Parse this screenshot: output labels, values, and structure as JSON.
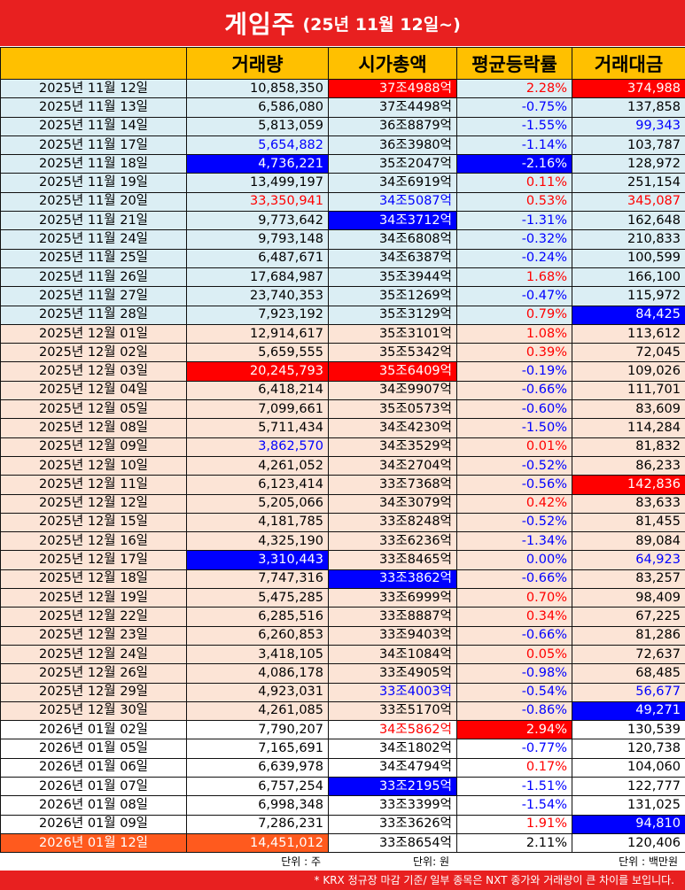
{
  "title": {
    "main": "게임주",
    "sub": "(25년 11월 12일~)"
  },
  "headers": [
    "",
    "거래량",
    "시가총액",
    "평균등락률",
    "거래대금"
  ],
  "rows": [
    {
      "g": "nov",
      "date": "2025년 11월 12일",
      "vol": "10,858,350",
      "cap": "37조4988억",
      "rate": "2.28%",
      "amt": "374,988",
      "vs": "",
      "cs": "bg-red",
      "rs": "c-red",
      "as": "bg-red"
    },
    {
      "g": "nov",
      "date": "2025년 11월 13일",
      "vol": "6,586,080",
      "cap": "37조4498억",
      "rate": "-0.75%",
      "amt": "137,858",
      "vs": "",
      "cs": "",
      "rs": "c-blue",
      "as": ""
    },
    {
      "g": "nov",
      "date": "2025년 11월 14일",
      "vol": "5,813,059",
      "cap": "36조8879억",
      "rate": "-1.55%",
      "amt": "99,343",
      "vs": "",
      "cs": "",
      "rs": "c-blue",
      "as": "c-blue"
    },
    {
      "g": "nov",
      "date": "2025년 11월 17일",
      "vol": "5,654,882",
      "cap": "36조3980억",
      "rate": "-1.14%",
      "amt": "103,787",
      "vs": "c-blue",
      "cs": "",
      "rs": "c-blue",
      "as": ""
    },
    {
      "g": "nov",
      "date": "2025년 11월 18일",
      "vol": "4,736,221",
      "cap": "35조2047억",
      "rate": "-2.16%",
      "amt": "128,972",
      "vs": "bg-blue",
      "cs": "",
      "rs": "bg-blue",
      "as": ""
    },
    {
      "g": "nov",
      "date": "2025년 11월 19일",
      "vol": "13,499,197",
      "cap": "34조6919억",
      "rate": "0.11%",
      "amt": "251,154",
      "vs": "",
      "cs": "",
      "rs": "c-red",
      "as": ""
    },
    {
      "g": "nov",
      "date": "2025년 11월 20일",
      "vol": "33,350,941",
      "cap": "34조5087억",
      "rate": "0.53%",
      "amt": "345,087",
      "vs": "c-red",
      "cs": "c-blue",
      "rs": "c-red",
      "as": "c-red"
    },
    {
      "g": "nov",
      "date": "2025년 11월 21일",
      "vol": "9,773,642",
      "cap": "34조3712억",
      "rate": "-1.31%",
      "amt": "162,648",
      "vs": "",
      "cs": "bg-blue",
      "rs": "c-blue",
      "as": ""
    },
    {
      "g": "nov",
      "date": "2025년 11월 24일",
      "vol": "9,793,148",
      "cap": "34조6808억",
      "rate": "-0.32%",
      "amt": "210,833",
      "vs": "",
      "cs": "",
      "rs": "c-blue",
      "as": ""
    },
    {
      "g": "nov",
      "date": "2025년 11월 25일",
      "vol": "6,487,671",
      "cap": "34조6387억",
      "rate": "-0.24%",
      "amt": "100,599",
      "vs": "",
      "cs": "",
      "rs": "c-blue",
      "as": ""
    },
    {
      "g": "nov",
      "date": "2025년 11월 26일",
      "vol": "17,684,987",
      "cap": "35조3944억",
      "rate": "1.68%",
      "amt": "166,100",
      "vs": "",
      "cs": "",
      "rs": "c-red",
      "as": ""
    },
    {
      "g": "nov",
      "date": "2025년 11월 27일",
      "vol": "23,740,353",
      "cap": "35조1269억",
      "rate": "-0.47%",
      "amt": "115,972",
      "vs": "",
      "cs": "",
      "rs": "c-blue",
      "as": ""
    },
    {
      "g": "nov",
      "date": "2025년 11월 28일",
      "vol": "7,923,192",
      "cap": "35조3129억",
      "rate": "0.79%",
      "amt": "84,425",
      "vs": "",
      "cs": "",
      "rs": "c-red",
      "as": "bg-blue"
    },
    {
      "g": "dec",
      "date": "2025년 12월 01일",
      "vol": "12,914,617",
      "cap": "35조3101억",
      "rate": "1.08%",
      "amt": "113,612",
      "vs": "",
      "cs": "",
      "rs": "c-red",
      "as": ""
    },
    {
      "g": "dec",
      "date": "2025년 12월 02일",
      "vol": "5,659,555",
      "cap": "35조5342억",
      "rate": "0.39%",
      "amt": "72,045",
      "vs": "",
      "cs": "",
      "rs": "c-red",
      "as": ""
    },
    {
      "g": "dec",
      "date": "2025년 12월 03일",
      "vol": "20,245,793",
      "cap": "35조6409억",
      "rate": "-0.19%",
      "amt": "109,026",
      "vs": "bg-red",
      "cs": "bg-red",
      "rs": "c-blue",
      "as": ""
    },
    {
      "g": "dec",
      "date": "2025년 12월 04일",
      "vol": "6,418,214",
      "cap": "34조9907억",
      "rate": "-0.66%",
      "amt": "111,701",
      "vs": "",
      "cs": "",
      "rs": "c-blue",
      "as": ""
    },
    {
      "g": "dec",
      "date": "2025년 12월 05일",
      "vol": "7,099,661",
      "cap": "35조0573억",
      "rate": "-0.60%",
      "amt": "83,609",
      "vs": "",
      "cs": "",
      "rs": "c-blue",
      "as": ""
    },
    {
      "g": "dec",
      "date": "2025년 12월 08일",
      "vol": "5,711,434",
      "cap": "34조4230억",
      "rate": "-1.50%",
      "amt": "114,284",
      "vs": "",
      "cs": "",
      "rs": "c-blue",
      "as": ""
    },
    {
      "g": "dec",
      "date": "2025년 12월 09일",
      "vol": "3,862,570",
      "cap": "34조3529억",
      "rate": "0.01%",
      "amt": "81,832",
      "vs": "c-blue",
      "cs": "",
      "rs": "c-red",
      "as": ""
    },
    {
      "g": "dec",
      "date": "2025년 12월 10일",
      "vol": "4,261,052",
      "cap": "34조2704억",
      "rate": "-0.52%",
      "amt": "86,233",
      "vs": "",
      "cs": "",
      "rs": "c-blue",
      "as": ""
    },
    {
      "g": "dec",
      "date": "2025년 12월 11일",
      "vol": "6,123,414",
      "cap": "33조7368억",
      "rate": "-0.56%",
      "amt": "142,836",
      "vs": "",
      "cs": "",
      "rs": "c-blue",
      "as": "bg-red"
    },
    {
      "g": "dec",
      "date": "2025년 12월 12일",
      "vol": "5,205,066",
      "cap": "34조3079억",
      "rate": "0.42%",
      "amt": "83,633",
      "vs": "",
      "cs": "",
      "rs": "c-red",
      "as": ""
    },
    {
      "g": "dec",
      "date": "2025년 12월 15일",
      "vol": "4,181,785",
      "cap": "33조8248억",
      "rate": "-0.52%",
      "amt": "81,455",
      "vs": "",
      "cs": "",
      "rs": "c-blue",
      "as": ""
    },
    {
      "g": "dec",
      "date": "2025년 12월 16일",
      "vol": "4,325,190",
      "cap": "33조6236억",
      "rate": "-1.34%",
      "amt": "89,084",
      "vs": "",
      "cs": "",
      "rs": "c-blue",
      "as": ""
    },
    {
      "g": "dec",
      "date": "2025년 12월 17일",
      "vol": "3,310,443",
      "cap": "33조8465억",
      "rate": "0.00%",
      "amt": "64,923",
      "vs": "bg-blue",
      "cs": "",
      "rs": "c-blue",
      "as": "c-blue"
    },
    {
      "g": "dec",
      "date": "2025년 12월 18일",
      "vol": "7,747,316",
      "cap": "33조3862억",
      "rate": "-0.66%",
      "amt": "83,257",
      "vs": "",
      "cs": "bg-blue",
      "rs": "c-blue",
      "as": ""
    },
    {
      "g": "dec",
      "date": "2025년 12월 19일",
      "vol": "5,475,285",
      "cap": "33조6999억",
      "rate": "0.70%",
      "amt": "98,409",
      "vs": "",
      "cs": "",
      "rs": "c-red",
      "as": ""
    },
    {
      "g": "dec",
      "date": "2025년 12월 22일",
      "vol": "6,285,516",
      "cap": "33조8887억",
      "rate": "0.34%",
      "amt": "67,225",
      "vs": "",
      "cs": "",
      "rs": "c-red",
      "as": ""
    },
    {
      "g": "dec",
      "date": "2025년 12월 23일",
      "vol": "6,260,853",
      "cap": "33조9403억",
      "rate": "-0.66%",
      "amt": "81,286",
      "vs": "",
      "cs": "",
      "rs": "c-blue",
      "as": ""
    },
    {
      "g": "dec",
      "date": "2025년 12월 24일",
      "vol": "3,418,105",
      "cap": "34조1084억",
      "rate": "0.05%",
      "amt": "72,637",
      "vs": "",
      "cs": "",
      "rs": "c-red",
      "as": ""
    },
    {
      "g": "dec",
      "date": "2025년 12월 26일",
      "vol": "4,086,178",
      "cap": "33조4905억",
      "rate": "-0.98%",
      "amt": "68,485",
      "vs": "",
      "cs": "",
      "rs": "c-blue",
      "as": ""
    },
    {
      "g": "dec",
      "date": "2025년 12월 29일",
      "vol": "4,923,031",
      "cap": "33조4003억",
      "rate": "-0.54%",
      "amt": "56,677",
      "vs": "",
      "cs": "c-blue",
      "rs": "c-blue",
      "as": "c-blue"
    },
    {
      "g": "dec",
      "date": "2025년 12월 30일",
      "vol": "4,261,085",
      "cap": "33조5170억",
      "rate": "-0.86%",
      "amt": "49,271",
      "vs": "",
      "cs": "",
      "rs": "c-blue",
      "as": "bg-blue"
    },
    {
      "g": "jan",
      "date": "2026년 01월 02일",
      "vol": "7,790,207",
      "cap": "34조5862억",
      "rate": "2.94%",
      "amt": "130,539",
      "vs": "",
      "cs": "c-red",
      "rs": "bg-red",
      "as": ""
    },
    {
      "g": "jan",
      "date": "2026년 01월 05일",
      "vol": "7,165,691",
      "cap": "34조1802억",
      "rate": "-0.77%",
      "amt": "120,738",
      "vs": "",
      "cs": "",
      "rs": "c-blue",
      "as": ""
    },
    {
      "g": "jan",
      "date": "2026년 01월 06일",
      "vol": "6,639,978",
      "cap": "34조4794억",
      "rate": "0.17%",
      "amt": "104,060",
      "vs": "",
      "cs": "",
      "rs": "c-red",
      "as": ""
    },
    {
      "g": "jan",
      "date": "2026년 01월 07일",
      "vol": "6,757,254",
      "cap": "33조2195억",
      "rate": "-1.51%",
      "amt": "122,777",
      "vs": "",
      "cs": "bg-blue",
      "rs": "c-blue",
      "as": ""
    },
    {
      "g": "jan",
      "date": "2026년 01월 08일",
      "vol": "6,998,348",
      "cap": "33조3399억",
      "rate": "-1.54%",
      "amt": "131,025",
      "vs": "",
      "cs": "",
      "rs": "c-blue",
      "as": ""
    },
    {
      "g": "jan",
      "date": "2026년 01월 09일",
      "vol": "7,286,231",
      "cap": "33조3626억",
      "rate": "1.91%",
      "amt": "94,810",
      "vs": "",
      "cs": "",
      "rs": "c-red",
      "as": "bg-blue"
    },
    {
      "g": "last",
      "date": "2026년 01월 12일",
      "vol": "14,451,012",
      "cap": "33조8654억",
      "rate": "2.11%",
      "amt": "120,406",
      "vs": "bg-orange",
      "cs": "",
      "rs": "",
      "as": ""
    }
  ],
  "units": {
    "vol": "단위 : 주",
    "cap": "단위: 원",
    "amt": "단위 : 백만원"
  },
  "footnote": "* KRX 정규장 마감 기준/ 일부 종목은 NXT 종가와 거래량이 큰 차이를 보입니다.",
  "colors": {
    "title_bg": "#e82020",
    "header_bg": "#ffc000",
    "nov_bg": "#dbeef4",
    "dec_bg": "#fce4d6",
    "up": "#ff0000",
    "down": "#0000ff",
    "highlight_orange": "#ff5a1e"
  }
}
